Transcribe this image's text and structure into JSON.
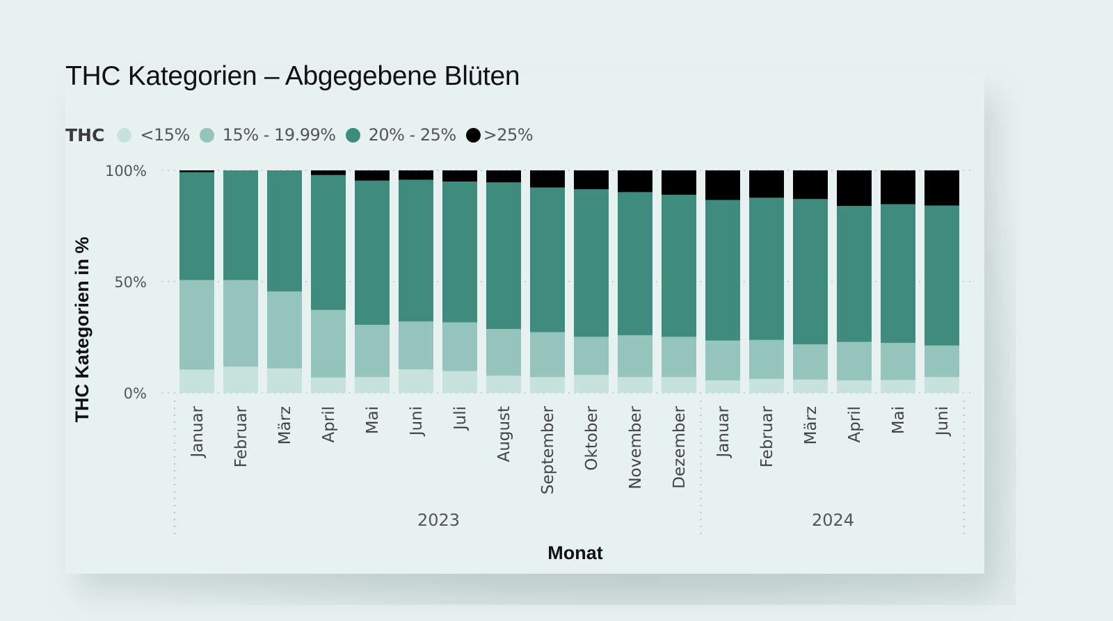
{
  "chart_data": {
    "type": "bar",
    "stacked": "percent",
    "title": "THC Kategorien – Abgegebene Blüten",
    "legend": {
      "title": "THC",
      "position": "top-left",
      "entries": [
        "<15%",
        "15% - 19.99%",
        "20% - 25%",
        ">25%"
      ]
    },
    "xlabel": "Monat",
    "ylabel": "THC Kategorien in %",
    "ylim": [
      0,
      100
    ],
    "yticks": [
      "0%",
      "50%",
      "100%"
    ],
    "grid": true,
    "year_groups": [
      {
        "label": "2023",
        "count": 12
      },
      {
        "label": "2024",
        "count": 6
      }
    ],
    "categories": [
      "Januar",
      "Februar",
      "März",
      "April",
      "Mai",
      "Juni",
      "Juli",
      "August",
      "September",
      "Oktober",
      "November",
      "Dezember",
      "Januar",
      "Februar",
      "März",
      "April",
      "Mai",
      "Juni"
    ],
    "series": [
      {
        "name": "<15%",
        "color": "#c7e2dd",
        "values": [
          10.5,
          11.8,
          11.0,
          6.9,
          7.1,
          10.6,
          9.8,
          7.7,
          7.1,
          8.1,
          7.1,
          7.1,
          5.6,
          6.3,
          6.0,
          5.6,
          5.8,
          7.1
        ]
      },
      {
        "name": "15% - 19.99%",
        "color": "#94c4bc",
        "values": [
          40.2,
          38.9,
          34.6,
          30.4,
          23.5,
          21.5,
          21.9,
          21.0,
          20.2,
          17.1,
          18.8,
          18.1,
          17.9,
          17.5,
          15.8,
          17.3,
          16.7,
          14.2
        ]
      },
      {
        "name": "20% - 25%",
        "color": "#3f8c7e",
        "values": [
          48.5,
          49.3,
          54.4,
          60.6,
          64.8,
          63.7,
          63.3,
          65.9,
          65.0,
          66.3,
          64.3,
          63.8,
          63.2,
          63.9,
          65.3,
          61.1,
          62.3,
          62.9
        ]
      },
      {
        "name": ">25%",
        "color": "#000000",
        "values": [
          0.8,
          0.0,
          0.0,
          2.1,
          4.6,
          4.2,
          5.0,
          5.4,
          7.7,
          8.5,
          9.8,
          11.0,
          13.3,
          12.3,
          12.9,
          16.0,
          15.2,
          15.8
        ]
      }
    ]
  }
}
